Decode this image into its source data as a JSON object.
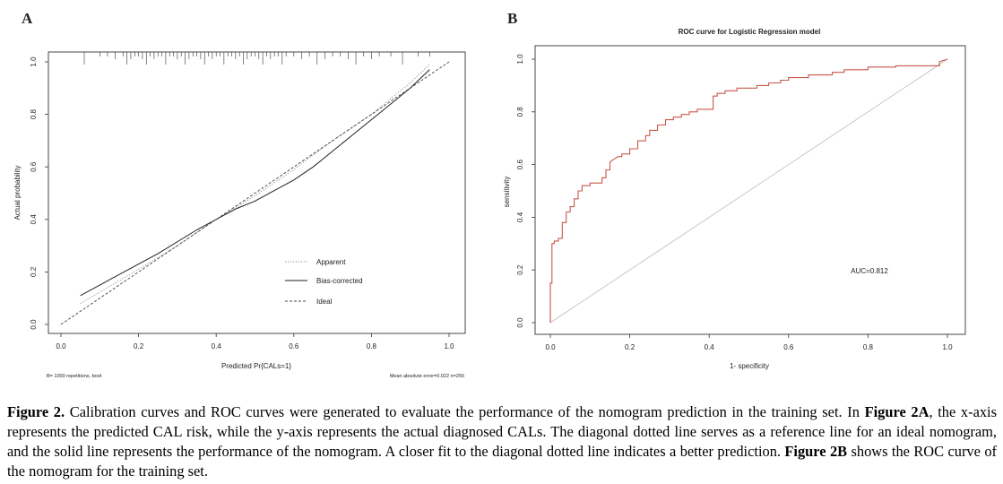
{
  "panel_a": {
    "letter": "A",
    "xlabel": "Predicted Pr{CALs=1}",
    "ylabel": "Actual probability",
    "note_left": "B= 1000 repetitions, boot",
    "note_right": "Mean absolute error=0.022 n=256",
    "legend": [
      "Apparent",
      "Bias-corrected",
      "Ideal"
    ]
  },
  "panel_b": {
    "letter": "B",
    "title": "ROC curve for Logistic Regression model",
    "xlabel": "1- specificity",
    "ylabel": "sensitivity",
    "auc_label": "AUC=0.812"
  },
  "chart_data": [
    {
      "type": "line",
      "xlim": [
        0,
        1
      ],
      "ylim": [
        0,
        1
      ],
      "x_ticks": [
        "0.0",
        "0.2",
        "0.4",
        "0.6",
        "0.8",
        "1.0"
      ],
      "y_ticks": [
        "0.0",
        "0.2",
        "0.4",
        "0.6",
        "0.8",
        "1.0"
      ],
      "legend_position": "bottom-center",
      "rug": [
        0.06,
        0.1,
        0.12,
        0.14,
        0.16,
        0.17,
        0.18,
        0.19,
        0.2,
        0.21,
        0.22,
        0.23,
        0.24,
        0.25,
        0.26,
        0.27,
        0.28,
        0.29,
        0.3,
        0.31,
        0.32,
        0.33,
        0.34,
        0.35,
        0.36,
        0.37,
        0.38,
        0.39,
        0.4,
        0.41,
        0.42,
        0.43,
        0.44,
        0.45,
        0.46,
        0.47,
        0.48,
        0.49,
        0.5,
        0.51,
        0.52,
        0.53,
        0.54,
        0.55,
        0.56,
        0.57,
        0.58,
        0.6,
        0.62,
        0.64,
        0.66,
        0.68,
        0.7,
        0.72,
        0.74,
        0.76,
        0.78,
        0.8,
        0.82,
        0.85,
        0.88,
        0.92,
        0.95
      ],
      "series": [
        {
          "name": "Apparent",
          "style": "dotted",
          "color": "#888888",
          "x": [
            0.05,
            0.2,
            0.3,
            0.4,
            0.5,
            0.6,
            0.7,
            0.8,
            0.9,
            0.95
          ],
          "y": [
            0.08,
            0.21,
            0.3,
            0.4,
            0.49,
            0.59,
            0.7,
            0.8,
            0.92,
            0.99
          ]
        },
        {
          "name": "Bias-corrected",
          "style": "solid",
          "color": "#222222",
          "x": [
            0.05,
            0.15,
            0.25,
            0.35,
            0.4,
            0.45,
            0.5,
            0.55,
            0.6,
            0.65,
            0.7,
            0.75,
            0.8,
            0.85,
            0.9,
            0.95
          ],
          "y": [
            0.11,
            0.19,
            0.27,
            0.36,
            0.4,
            0.44,
            0.47,
            0.51,
            0.55,
            0.6,
            0.66,
            0.72,
            0.78,
            0.84,
            0.9,
            0.97
          ]
        },
        {
          "name": "Ideal",
          "style": "dashed",
          "color": "#444444",
          "x": [
            0,
            1
          ],
          "y": [
            0,
            1
          ]
        }
      ]
    },
    {
      "type": "line",
      "title": "ROC curve for Logistic Regression model",
      "xlim": [
        0,
        1
      ],
      "ylim": [
        0,
        1
      ],
      "x_ticks": [
        "0.0",
        "0.2",
        "0.4",
        "0.6",
        "0.8",
        "1.0"
      ],
      "y_ticks": [
        "0.0",
        "0.2",
        "0.4",
        "0.6",
        "0.8",
        "1.0"
      ],
      "auc": 0.812,
      "series": [
        {
          "name": "ROC",
          "color": "#c8584a",
          "x": [
            0,
            0,
            0.004,
            0.004,
            0.01,
            0.01,
            0.02,
            0.02,
            0.03,
            0.03,
            0.04,
            0.04,
            0.05,
            0.05,
            0.06,
            0.06,
            0.07,
            0.07,
            0.08,
            0.08,
            0.1,
            0.1,
            0.13,
            0.13,
            0.14,
            0.14,
            0.15,
            0.15,
            0.16,
            0.17,
            0.18,
            0.18,
            0.2,
            0.2,
            0.22,
            0.22,
            0.24,
            0.24,
            0.25,
            0.25,
            0.27,
            0.27,
            0.29,
            0.29,
            0.31,
            0.31,
            0.33,
            0.33,
            0.35,
            0.35,
            0.37,
            0.37,
            0.41,
            0.41,
            0.42,
            0.42,
            0.44,
            0.44,
            0.47,
            0.47,
            0.52,
            0.52,
            0.55,
            0.55,
            0.58,
            0.58,
            0.6,
            0.6,
            0.65,
            0.65,
            0.71,
            0.71,
            0.74,
            0.74,
            0.8,
            0.8,
            0.87,
            0.87,
            0.98,
            0.98,
            1
          ],
          "y": [
            0,
            0.15,
            0.15,
            0.3,
            0.3,
            0.31,
            0.31,
            0.32,
            0.32,
            0.38,
            0.38,
            0.42,
            0.42,
            0.44,
            0.44,
            0.47,
            0.47,
            0.5,
            0.5,
            0.52,
            0.52,
            0.53,
            0.53,
            0.55,
            0.55,
            0.58,
            0.58,
            0.61,
            0.62,
            0.63,
            0.63,
            0.64,
            0.64,
            0.66,
            0.66,
            0.69,
            0.69,
            0.71,
            0.71,
            0.73,
            0.73,
            0.75,
            0.75,
            0.77,
            0.77,
            0.78,
            0.78,
            0.79,
            0.79,
            0.8,
            0.8,
            0.81,
            0.81,
            0.86,
            0.86,
            0.87,
            0.87,
            0.88,
            0.88,
            0.89,
            0.89,
            0.9,
            0.9,
            0.91,
            0.91,
            0.92,
            0.92,
            0.93,
            0.93,
            0.94,
            0.94,
            0.95,
            0.95,
            0.96,
            0.96,
            0.97,
            0.97,
            0.975,
            0.975,
            0.99,
            1
          ]
        },
        {
          "name": "Reference",
          "color": "#bbbbbb",
          "x": [
            0,
            1
          ],
          "y": [
            0,
            1
          ]
        }
      ]
    }
  ],
  "caption": {
    "fig_label": "Figure 2.",
    "text1": " Calibration curves and ROC curves were generated to evaluate the performance of the nomogram prediction in the training set. In ",
    "bold2a": "Figure 2A",
    "text2": ", the x-axis represents the predicted CAL risk, while the y-axis represents the actual diagnosed CALs. The diagonal dotted line serves as a reference line for an ideal nomogram, and the solid line represents the performance of the nomogram. A closer fit to the diagonal dotted line indicates a better prediction. ",
    "bold2b": "Figure 2B",
    "text3": " shows the ROC curve of the nomogram for the training set."
  }
}
